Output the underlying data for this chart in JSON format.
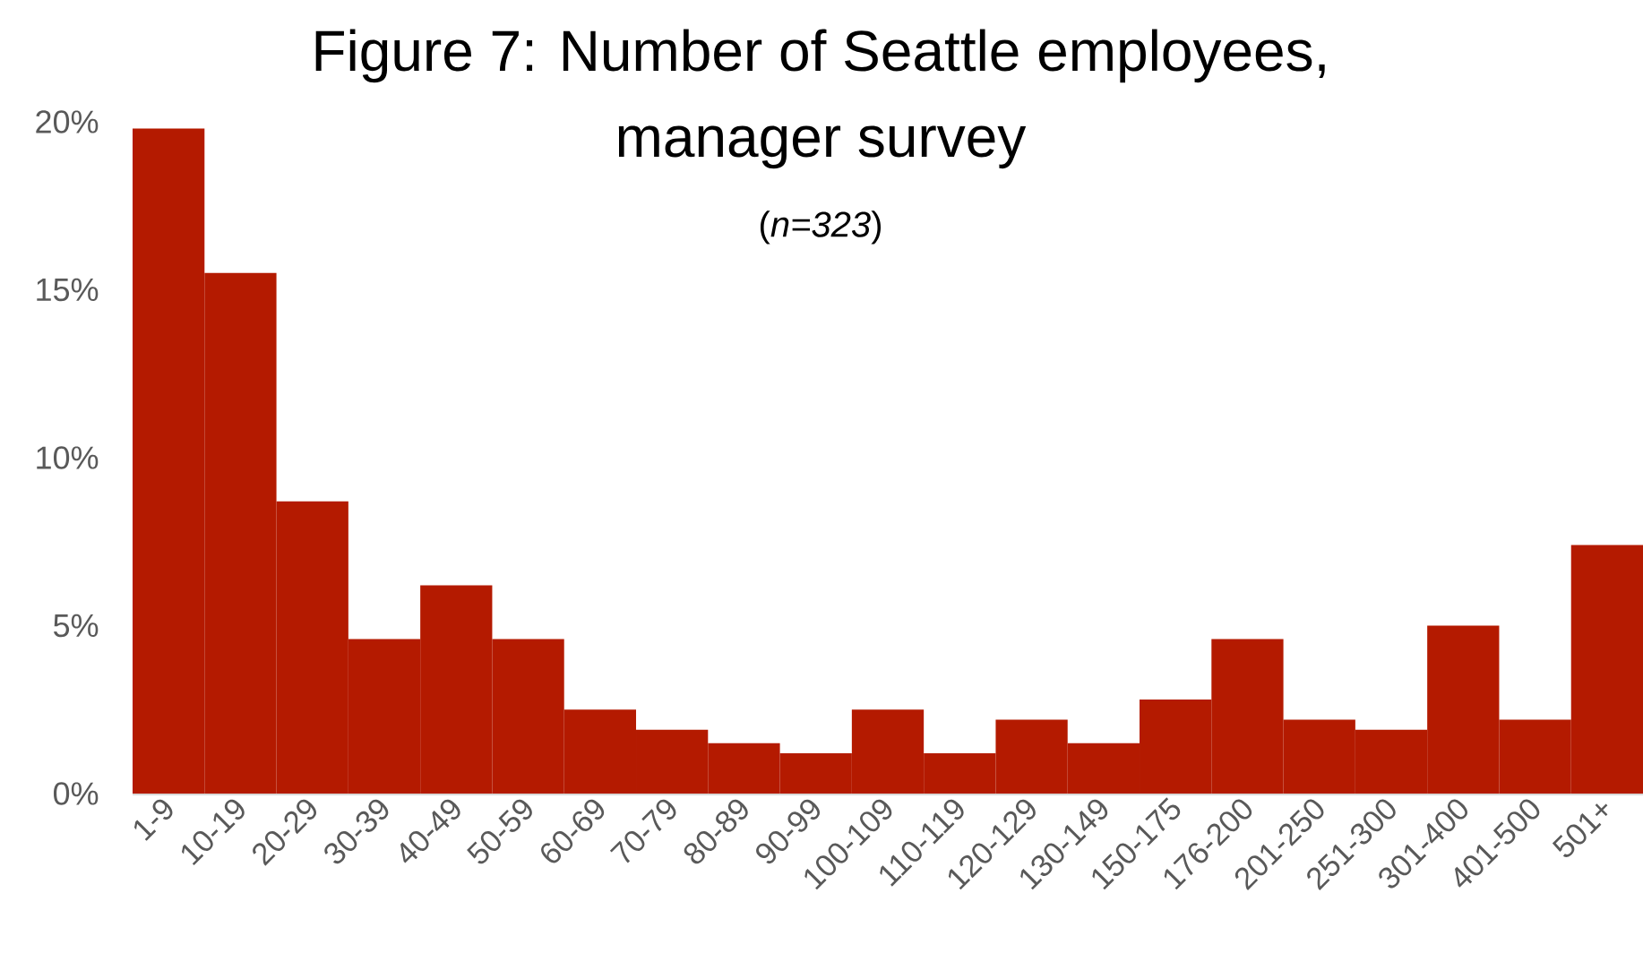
{
  "chart_data": {
    "type": "bar",
    "title": "Figure 7: Number of Seattle employees, manager survey",
    "subtitle": "(*n=323*)",
    "categories": [
      "1-9",
      "10-19",
      "20-29",
      "30-39",
      "40-49",
      "50-59",
      "60-69",
      "70-79",
      "80-89",
      "90-99",
      "100-109",
      "110-119",
      "120-129",
      "130-149",
      "150-175",
      "176-200",
      "201-250",
      "251-300",
      "301-400",
      "401-500",
      "501+"
    ],
    "values": [
      19.8,
      15.5,
      8.7,
      4.6,
      6.2,
      4.6,
      2.5,
      1.9,
      1.5,
      1.2,
      2.5,
      1.2,
      2.2,
      1.5,
      2.8,
      4.6,
      2.2,
      1.9,
      5.0,
      2.2,
      7.4
    ],
    "color": "#b41a00",
    "ylim": [
      0,
      20
    ],
    "yticks": [
      {
        "value": 0,
        "label": "0%"
      },
      {
        "value": 5,
        "label": "5%"
      },
      {
        "value": 10,
        "label": "10%"
      },
      {
        "value": 15,
        "label": "15%"
      },
      {
        "value": 20,
        "label": "20%"
      }
    ]
  }
}
